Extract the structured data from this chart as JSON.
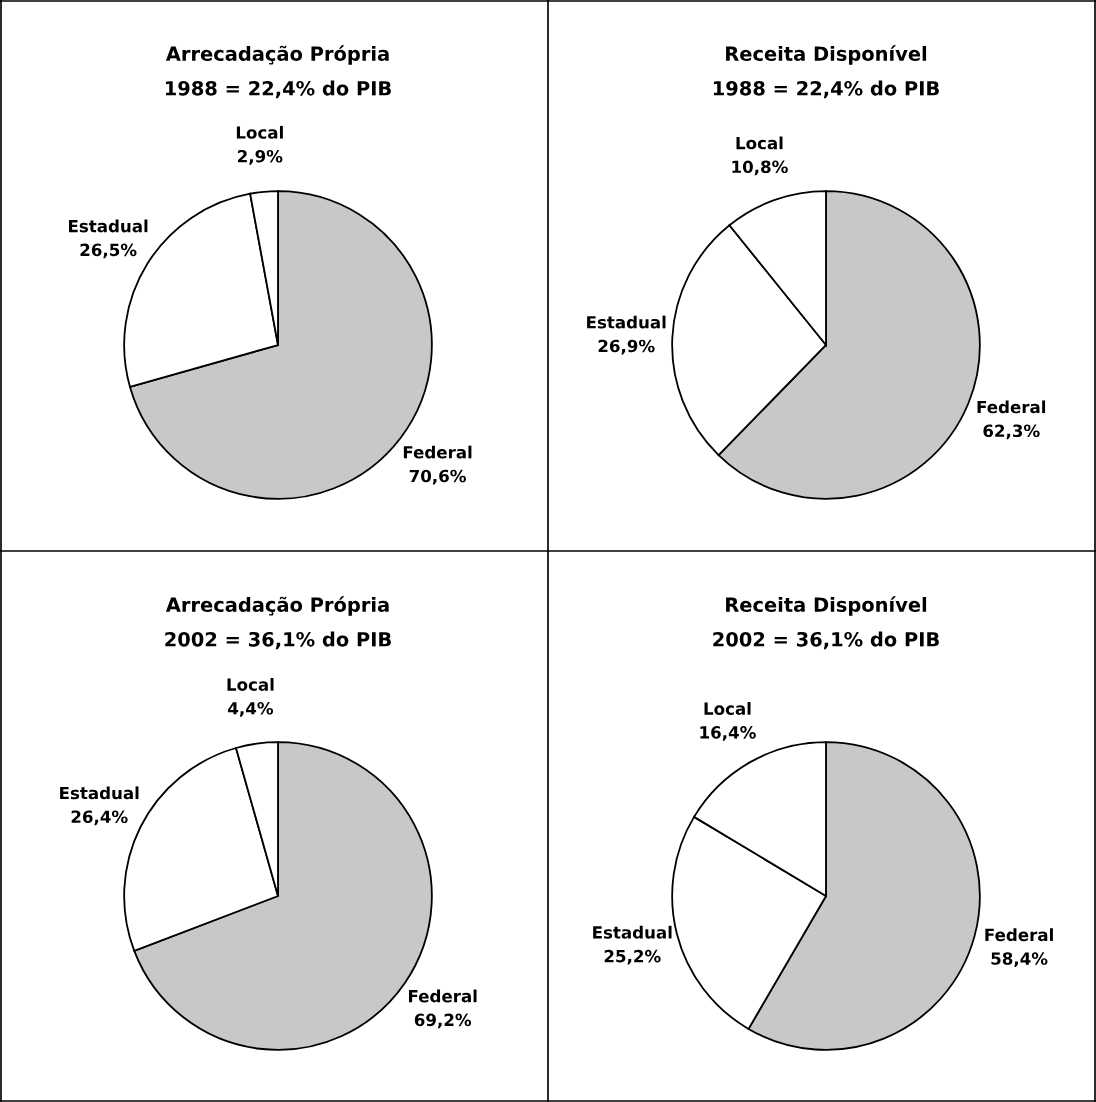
{
  "chart_data": [
    {
      "type": "pie",
      "title": "Arrecadação Própria",
      "subtitle": "1988 = 22,4% do PIB",
      "categories": [
        "Federal",
        "Estadual",
        "Local"
      ],
      "values": [
        70.6,
        26.5,
        2.9
      ],
      "value_labels": [
        "70,6%",
        "26,5%",
        "2,9%"
      ],
      "colors": [
        "#c8c8c8",
        "#ffffff",
        "#ffffff"
      ]
    },
    {
      "type": "pie",
      "title": "Receita Disponível",
      "subtitle": "1988 = 22,4% do PIB",
      "categories": [
        "Federal",
        "Estadual",
        "Local"
      ],
      "values": [
        62.3,
        26.9,
        10.8
      ],
      "value_labels": [
        "62,3%",
        "26,9%",
        "10,8%"
      ],
      "colors": [
        "#c8c8c8",
        "#ffffff",
        "#ffffff"
      ]
    },
    {
      "type": "pie",
      "title": "Arrecadação Própria",
      "subtitle": "2002 = 36,1% do PIB",
      "categories": [
        "Federal",
        "Estadual",
        "Local"
      ],
      "values": [
        69.2,
        26.4,
        4.4
      ],
      "value_labels": [
        "69,2%",
        "26,4%",
        "4,4%"
      ],
      "colors": [
        "#c8c8c8",
        "#ffffff",
        "#ffffff"
      ]
    },
    {
      "type": "pie",
      "title": "Receita Disponível",
      "subtitle": "2002 = 36,1% do PIB",
      "categories": [
        "Federal",
        "Estadual",
        "Local"
      ],
      "values": [
        58.4,
        25.2,
        16.4
      ],
      "value_labels": [
        "58,4%",
        "25,2%",
        "16,4%"
      ],
      "colors": [
        "#c8c8c8",
        "#ffffff",
        "#ffffff"
      ]
    }
  ]
}
